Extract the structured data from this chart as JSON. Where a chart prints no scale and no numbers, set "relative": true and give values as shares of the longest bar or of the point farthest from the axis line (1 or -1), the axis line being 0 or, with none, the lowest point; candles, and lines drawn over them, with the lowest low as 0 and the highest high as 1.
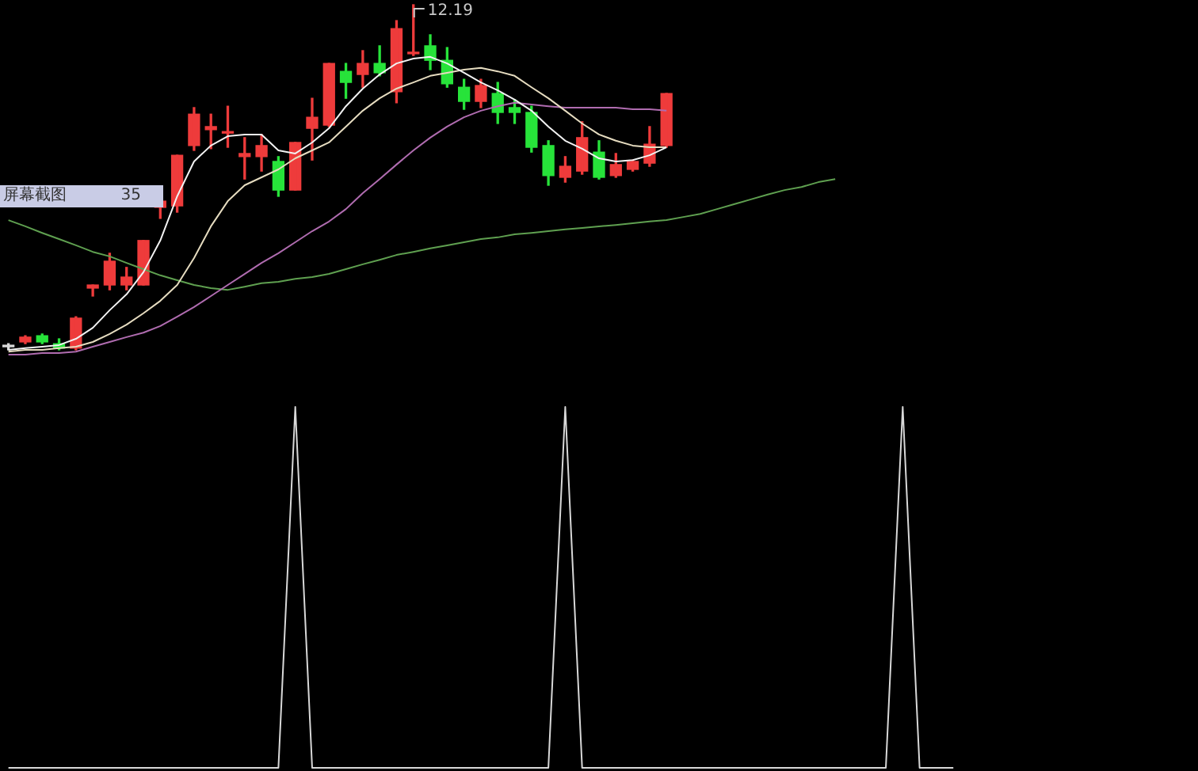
{
  "chart_data": [
    {
      "type": "candlestick",
      "relative": true,
      "categories": [
        null,
        null,
        null,
        null,
        null,
        null,
        null,
        null,
        null,
        null,
        null,
        null,
        null,
        null,
        null,
        null,
        null,
        null,
        null,
        null,
        null,
        null,
        null,
        null,
        null,
        null,
        null,
        null,
        null,
        null,
        null,
        null,
        null,
        null,
        null,
        null,
        null,
        null,
        null,
        null,
        null,
        null,
        null,
        null,
        null,
        null,
        null,
        null,
        null,
        null,
        null,
        null,
        null,
        null,
        null,
        null,
        null,
        null,
        null,
        null,
        null,
        null,
        null,
        null,
        null,
        null,
        null,
        null,
        null,
        null,
        null
      ],
      "ohlc": [
        [
          0.009,
          0.018,
          0,
          0.01
        ],
        [
          0.023,
          0.041,
          0.018,
          0.037
        ],
        [
          0.041,
          0.046,
          0.018,
          0.023
        ],
        [
          0.018,
          0.032,
          0,
          0.005
        ],
        [
          0.005,
          0.096,
          0,
          0.092
        ],
        [
          0.179,
          0.188,
          0.156,
          0.188
        ],
        [
          0.188,
          0.28,
          0.174,
          0.257
        ],
        [
          0.188,
          0.239,
          0.174,
          0.211
        ],
        [
          0.188,
          0.317,
          0.188,
          0.317
        ],
        [
          0.413,
          0.431,
          0.381,
          0.431
        ],
        [
          0.417,
          0.564,
          0.399,
          0.564
        ],
        [
          0.592,
          0.702,
          0.578,
          0.683
        ],
        [
          0.638,
          0.683,
          0.583,
          0.647
        ],
        [
          0.628,
          0.706,
          0.587,
          0.63
        ],
        [
          0.56,
          0.615,
          0.495,
          0.569
        ],
        [
          0.56,
          0.624,
          0.518,
          0.592
        ],
        [
          0.546,
          0.56,
          0.445,
          0.463
        ],
        [
          0.463,
          0.601,
          0.463,
          0.601
        ],
        [
          0.642,
          0.729,
          0.55,
          0.674
        ],
        [
          0.651,
          0.83,
          0.647,
          0.83
        ],
        [
          0.807,
          0.83,
          0.729,
          0.775
        ],
        [
          0.798,
          0.867,
          0.761,
          0.83
        ],
        [
          0.83,
          0.881,
          0.794,
          0.803
        ],
        [
          0.748,
          0.954,
          0.716,
          0.931
        ],
        [
          0.858,
          1,
          0.853,
          0.862
        ],
        [
          0.881,
          0.913,
          0.812,
          0.839
        ],
        [
          0.839,
          0.876,
          0.761,
          0.771
        ],
        [
          0.761,
          0.784,
          0.697,
          0.72
        ],
        [
          0.72,
          0.784,
          0.702,
          0.766
        ],
        [
          0.743,
          0.775,
          0.656,
          0.688
        ],
        [
          0.702,
          0.725,
          0.656,
          0.688
        ],
        [
          0.688,
          0.706,
          0.573,
          0.587
        ],
        [
          0.592,
          0.606,
          0.477,
          0.505
        ],
        [
          0.5,
          0.56,
          0.486,
          0.532
        ],
        [
          0.518,
          0.661,
          0.509,
          0.615
        ],
        [
          0.573,
          0.606,
          0.495,
          0.5
        ],
        [
          0.505,
          0.569,
          0.5,
          0.537
        ],
        [
          0.523,
          0.55,
          0.518,
          0.546
        ],
        [
          0.541,
          0.647,
          0.532,
          0.596
        ],
        [
          0.592,
          0.743,
          0.587,
          0.743
        ],
        null,
        null,
        null,
        null,
        null,
        null,
        null,
        null,
        null,
        null,
        null,
        null,
        null,
        null,
        null,
        null,
        null,
        null,
        null,
        null,
        null,
        null,
        null,
        null,
        null,
        null,
        null,
        null,
        null,
        null,
        null
      ],
      "colors": [
        "#d8d8d8",
        "#ee3b3b",
        "#27e33a",
        "#27e33a",
        "#ee3b3b",
        "#ee3b3b",
        "#ee3b3b",
        "#ee3b3b",
        "#ee3b3b",
        "#ee3b3b",
        "#ee3b3b",
        "#ee3b3b",
        "#ee3b3b",
        "#ee3b3b",
        "#ee3b3b",
        "#ee3b3b",
        "#27e33a",
        "#ee3b3b",
        "#ee3b3b",
        "#ee3b3b",
        "#27e33a",
        "#ee3b3b",
        "#27e33a",
        "#ee3b3b",
        "#ee3b3b",
        "#27e33a",
        "#27e33a",
        "#27e33a",
        "#ee3b3b",
        "#27e33a",
        "#27e33a",
        "#27e33a",
        "#27e33a",
        "#ee3b3b",
        "#ee3b3b",
        "#27e33a",
        "#ee3b3b",
        "#ee3b3b",
        "#ee3b3b",
        "#ee3b3b",
        null,
        null,
        null,
        null,
        null,
        null,
        null,
        null,
        null,
        null,
        null,
        null,
        null,
        null,
        null,
        null,
        null,
        null,
        null,
        null,
        null,
        null,
        null,
        null,
        null,
        null,
        null,
        null,
        null,
        null,
        null
      ],
      "series": [
        {
          "type": "line",
          "color": "#f2f2f2",
          "values": [
            0,
            0.005,
            0.009,
            0.014,
            0.032,
            0.064,
            0.115,
            0.161,
            0.225,
            0.317,
            0.445,
            0.546,
            0.592,
            0.619,
            0.624,
            0.624,
            0.578,
            0.569,
            0.601,
            0.642,
            0.706,
            0.757,
            0.798,
            0.83,
            0.844,
            0.849,
            0.83,
            0.803,
            0.775,
            0.752,
            0.725,
            0.693,
            0.647,
            0.606,
            0.583,
            0.555,
            0.546,
            0.55,
            0.564,
            0.587,
            null,
            null,
            null,
            null,
            null,
            null,
            null,
            null,
            null,
            null,
            null,
            null,
            null,
            null,
            null,
            null,
            null,
            null,
            null,
            null,
            null,
            null,
            null,
            null,
            null,
            null,
            null,
            null,
            null,
            null,
            null
          ]
        },
        {
          "type": "line",
          "color": "#e6dcc0",
          "values": [
            -0.005,
            0,
            0,
            0.005,
            0.009,
            0.023,
            0.046,
            0.073,
            0.106,
            0.142,
            0.188,
            0.266,
            0.358,
            0.431,
            0.477,
            0.5,
            0.523,
            0.555,
            0.578,
            0.601,
            0.647,
            0.693,
            0.729,
            0.757,
            0.775,
            0.794,
            0.803,
            0.812,
            0.817,
            0.807,
            0.794,
            0.761,
            0.729,
            0.693,
            0.656,
            0.624,
            0.606,
            0.592,
            0.587,
            0.587,
            null,
            null,
            null,
            null,
            null,
            null,
            null,
            null,
            null,
            null,
            null,
            null,
            null,
            null,
            null,
            null,
            null,
            null,
            null,
            null,
            null,
            null,
            null,
            null,
            null,
            null,
            null,
            null,
            null,
            null,
            null
          ]
        },
        {
          "type": "line",
          "color": "#b06cb0",
          "values": [
            -0.014,
            -0.014,
            -0.009,
            -0.009,
            -0.005,
            0.009,
            0.023,
            0.037,
            0.05,
            0.069,
            0.096,
            0.124,
            0.156,
            0.188,
            0.22,
            0.252,
            0.28,
            0.312,
            0.344,
            0.372,
            0.408,
            0.454,
            0.495,
            0.537,
            0.578,
            0.615,
            0.647,
            0.674,
            0.693,
            0.706,
            0.716,
            0.711,
            0.706,
            0.702,
            0.702,
            0.702,
            0.702,
            0.697,
            0.697,
            0.693,
            null,
            null,
            null,
            null,
            null,
            null,
            null,
            null,
            null,
            null,
            null,
            null,
            null,
            null,
            null,
            null,
            null,
            null,
            null,
            null,
            null,
            null,
            null,
            null,
            null,
            null,
            null,
            null,
            null,
            null,
            null
          ]
        },
        {
          "type": "line",
          "color": "#5fa050",
          "values": [
            0.376,
            0.358,
            0.339,
            0.321,
            0.303,
            0.284,
            0.271,
            0.252,
            0.234,
            0.216,
            0.202,
            0.188,
            0.179,
            0.174,
            0.183,
            0.193,
            0.197,
            0.206,
            0.211,
            0.22,
            0.234,
            0.248,
            0.261,
            0.275,
            0.284,
            0.294,
            0.303,
            0.312,
            0.321,
            0.326,
            0.335,
            0.339,
            0.344,
            0.349,
            0.353,
            0.358,
            0.362,
            0.367,
            0.372,
            0.376,
            0.385,
            0.394,
            0.408,
            0.422,
            0.436,
            0.45,
            0.463,
            0.472,
            0.486,
            0.495,
            null,
            null,
            null,
            null,
            null,
            null,
            null,
            null,
            null,
            null,
            null,
            null,
            null,
            null,
            null,
            null,
            null,
            null,
            null,
            null,
            null
          ]
        }
      ],
      "annotations": [
        "12.19",
        "屏幕截图",
        "35"
      ]
    },
    {
      "type": "line",
      "relative": true,
      "categories": [
        null,
        null,
        null,
        null,
        null,
        null,
        null,
        null,
        null,
        null,
        null,
        null,
        null,
        null,
        null,
        null,
        null,
        null,
        null,
        null,
        null,
        null,
        null,
        null,
        null,
        null,
        null,
        null,
        null,
        null,
        null,
        null,
        null,
        null,
        null,
        null,
        null,
        null,
        null,
        null,
        null,
        null,
        null,
        null,
        null,
        null,
        null,
        null,
        null,
        null,
        null,
        null,
        null,
        null,
        null,
        null,
        null,
        null,
        null,
        null,
        null,
        null,
        null,
        null,
        null,
        null,
        null,
        null,
        null,
        null,
        null
      ],
      "series": [
        {
          "color": "#d8d8d8",
          "values": [
            0,
            0,
            0,
            0,
            0,
            0,
            0,
            0,
            0,
            0,
            0,
            0,
            0,
            0,
            0,
            0,
            0,
            1,
            0,
            0,
            0,
            0,
            0,
            0,
            0,
            0,
            0,
            0,
            0,
            0,
            0,
            0,
            0,
            1,
            0,
            0,
            0,
            0,
            0,
            0,
            0,
            0,
            0,
            0,
            0,
            0,
            0,
            0,
            0,
            0,
            0,
            0,
            0,
            1,
            0,
            0,
            0,
            null,
            null,
            null,
            null,
            null,
            null,
            null,
            null,
            null,
            null,
            null,
            null,
            null,
            null
          ]
        }
      ]
    }
  ]
}
